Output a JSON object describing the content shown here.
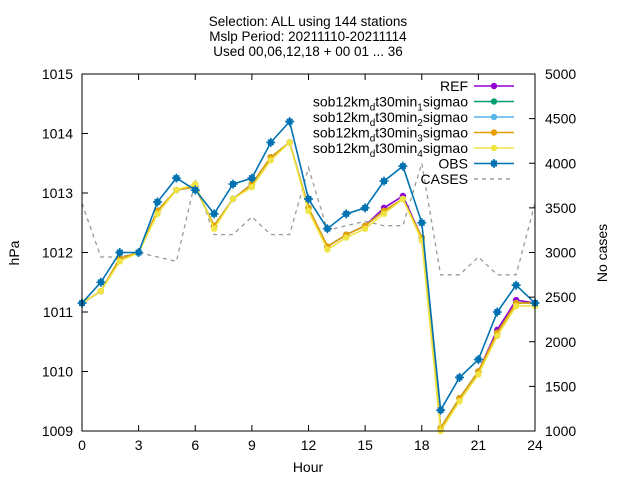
{
  "chart_data": {
    "type": "line",
    "title_lines": [
      "Selection: ALL using   144 stations",
      "Mslp   Period: 20211110-20211114",
      "Used 00,06,12,18 + 00 01 ... 36"
    ],
    "xlabel": "Hour",
    "ylabel": "hPa",
    "y2label": "No cases",
    "xlim": [
      0,
      24
    ],
    "ylim": [
      1009,
      1015
    ],
    "y2lim": [
      1000,
      5000
    ],
    "xticks": [
      0,
      3,
      6,
      9,
      12,
      15,
      18,
      21,
      24
    ],
    "yticks": [
      1009,
      1010,
      1011,
      1012,
      1013,
      1014,
      1015
    ],
    "y2ticks": [
      1000,
      1500,
      2000,
      2500,
      3000,
      3500,
      4000,
      4500,
      5000
    ],
    "grid": false,
    "legend_position": "top-right",
    "x": [
      0,
      1,
      2,
      3,
      4,
      5,
      6,
      7,
      8,
      9,
      10,
      11,
      12,
      13,
      14,
      15,
      16,
      17,
      18,
      19,
      20,
      21,
      22,
      23,
      24
    ],
    "series": [
      {
        "name": "REF",
        "legend": [
          "REF"
        ],
        "color": "#9400d3",
        "marker": "circle",
        "axis": "y",
        "values": [
          1011.15,
          1011.35,
          1011.9,
          1012.0,
          1012.7,
          1013.05,
          1013.1,
          1012.45,
          1012.9,
          1013.15,
          1013.6,
          1013.85,
          1012.75,
          1012.1,
          1012.3,
          1012.45,
          1012.75,
          1012.95,
          1012.25,
          1009.05,
          1009.55,
          1010.0,
          1010.7,
          1011.2,
          1011.15
        ]
      },
      {
        "name": "sob12km_d t30min_1 sigmao",
        "legend": [
          "sob12km",
          "d",
          "t30min",
          "1",
          "sigmao"
        ],
        "color": "#009e73",
        "marker": "circle",
        "axis": "y",
        "values": [
          1011.15,
          1011.35,
          1011.9,
          1012.0,
          1012.7,
          1013.05,
          1013.1,
          1012.45,
          1012.9,
          1013.15,
          1013.6,
          1013.85,
          1012.75,
          1012.1,
          1012.3,
          1012.45,
          1012.7,
          1012.9,
          1012.25,
          1009.05,
          1009.55,
          1010.0,
          1010.65,
          1011.15,
          1011.15
        ]
      },
      {
        "name": "sob12km_d t30min_2 sigmao",
        "legend": [
          "sob12km",
          "d",
          "t30min",
          "2",
          "sigmao"
        ],
        "color": "#56b4e9",
        "marker": "circle",
        "axis": "y",
        "values": [
          1011.15,
          1011.35,
          1011.9,
          1012.0,
          1012.7,
          1013.05,
          1013.1,
          1012.45,
          1012.9,
          1013.15,
          1013.6,
          1013.85,
          1012.75,
          1012.1,
          1012.3,
          1012.45,
          1012.7,
          1012.9,
          1012.25,
          1009.05,
          1009.55,
          1010.0,
          1010.65,
          1011.15,
          1011.15
        ]
      },
      {
        "name": "sob12km_d t30min_3 sigmao",
        "legend": [
          "sob12km",
          "d",
          "t30min",
          "3",
          "sigmao"
        ],
        "color": "#e69f00",
        "marker": "circle",
        "axis": "y",
        "values": [
          1011.15,
          1011.35,
          1011.9,
          1012.0,
          1012.7,
          1013.05,
          1013.1,
          1012.45,
          1012.9,
          1013.15,
          1013.6,
          1013.85,
          1012.75,
          1012.1,
          1012.3,
          1012.45,
          1012.7,
          1012.9,
          1012.25,
          1009.05,
          1009.55,
          1010.0,
          1010.65,
          1011.15,
          1011.15
        ]
      },
      {
        "name": "sob12km_d t30min_4 sigmao",
        "legend": [
          "sob12km",
          "d",
          "t30min",
          "4",
          "sigmao"
        ],
        "color": "#f0e442",
        "marker": "circle",
        "axis": "y",
        "values": [
          1011.15,
          1011.35,
          1011.85,
          1012.0,
          1012.65,
          1013.05,
          1013.15,
          1012.4,
          1012.9,
          1013.1,
          1013.55,
          1013.85,
          1012.7,
          1012.05,
          1012.25,
          1012.4,
          1012.65,
          1012.9,
          1012.2,
          1009.0,
          1009.5,
          1009.95,
          1010.6,
          1011.1,
          1011.1
        ]
      },
      {
        "name": "OBS",
        "legend": [
          "OBS"
        ],
        "color": "#0072b2",
        "marker": "star",
        "axis": "y",
        "values": [
          1011.15,
          1011.5,
          1012.0,
          1012.0,
          1012.85,
          1013.25,
          1013.05,
          1012.65,
          1013.15,
          1013.25,
          1013.85,
          1014.2,
          1012.9,
          1012.4,
          1012.65,
          1012.75,
          1013.2,
          1013.45,
          1012.5,
          1009.35,
          1009.9,
          1010.2,
          1011.0,
          1011.45,
          1011.15
        ]
      },
      {
        "name": "CASES",
        "legend": [
          "CASES"
        ],
        "color": "#999999",
        "marker": "none",
        "dashed": true,
        "axis": "y2",
        "values": [
          3550,
          2950,
          2950,
          3000,
          2950,
          2900,
          3800,
          3200,
          3200,
          3400,
          3200,
          3200,
          3950,
          3250,
          3300,
          3350,
          3300,
          3300,
          4000,
          2750,
          2750,
          2950,
          2750,
          2750,
          3550
        ]
      }
    ]
  }
}
